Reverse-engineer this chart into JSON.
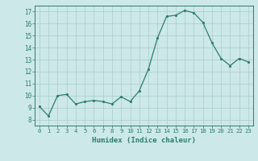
{
  "x": [
    0,
    1,
    2,
    3,
    4,
    5,
    6,
    7,
    8,
    9,
    10,
    11,
    12,
    13,
    14,
    15,
    16,
    17,
    18,
    19,
    20,
    21,
    22,
    23
  ],
  "y": [
    9.1,
    8.3,
    10.0,
    10.1,
    9.3,
    9.5,
    9.6,
    9.5,
    9.3,
    9.9,
    9.5,
    10.4,
    12.2,
    14.8,
    16.6,
    16.7,
    17.1,
    16.9,
    16.1,
    14.4,
    13.1,
    12.5,
    13.1,
    12.8
  ],
  "line_color": "#2e7d6e",
  "marker_color": "#2e7d6e",
  "bg_color": "#cce8e8",
  "grid_color": "#aacccc",
  "xlabel": "Humidex (Indice chaleur)",
  "xlim": [
    -0.5,
    23.5
  ],
  "ylim": [
    7.5,
    17.5
  ],
  "yticks": [
    8,
    9,
    10,
    11,
    12,
    13,
    14,
    15,
    16,
    17
  ],
  "xticks": [
    0,
    1,
    2,
    3,
    4,
    5,
    6,
    7,
    8,
    9,
    10,
    11,
    12,
    13,
    14,
    15,
    16,
    17,
    18,
    19,
    20,
    21,
    22,
    23
  ],
  "xtick_labels": [
    "0",
    "1",
    "2",
    "3",
    "4",
    "5",
    "6",
    "7",
    "8",
    "9",
    "10",
    "11",
    "12",
    "13",
    "14",
    "15",
    "16",
    "17",
    "18",
    "19",
    "20",
    "21",
    "22",
    "23"
  ],
  "tick_color": "#2e7d6e",
  "label_color": "#2e7d6e",
  "axis_color": "#2e7d6e",
  "title_color": "#2e7d6e"
}
